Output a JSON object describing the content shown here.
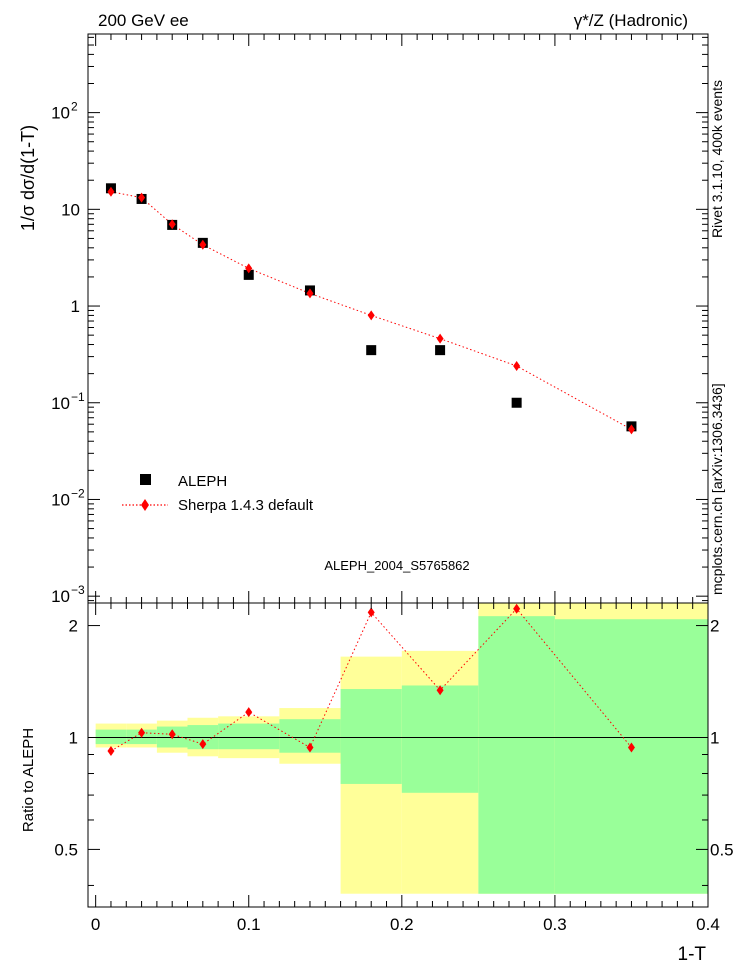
{
  "header": {
    "left": "200 GeV ee",
    "right": "γ*/Z (Hadronic)"
  },
  "side_labels": {
    "version": "Rivet 3.1.10,  400k events",
    "source": "mcplots.cern.ch [arXiv:1306.3436]"
  },
  "watermark": "ALEPH_2004_S5765862",
  "chart_data": [
    {
      "type": "scatter",
      "panel": "main",
      "ylabel": "1/σ  dσ/d(1-T)",
      "yscale": "log",
      "ylim": [
        0.00085,
        650
      ],
      "xlim": [
        -0.005,
        0.4
      ],
      "y_ticks": [
        {
          "value": 100,
          "label": "10",
          "exp": "2"
        },
        {
          "value": 10,
          "label": "10",
          "exp": ""
        },
        {
          "value": 1,
          "label": "1",
          "exp": ""
        },
        {
          "value": 0.1,
          "label": "10",
          "exp": "−1"
        },
        {
          "value": 0.01,
          "label": "10",
          "exp": "−2"
        },
        {
          "value": 0.001,
          "label": "10",
          "exp": "−3"
        }
      ],
      "legend": {
        "position": "bottom-left",
        "entries": [
          "ALEPH",
          "Sherpa 1.4.3 default"
        ]
      },
      "series": [
        {
          "name": "ALEPH",
          "color": "#000000",
          "marker": "square",
          "x": [
            0.01,
            0.03,
            0.05,
            0.07,
            0.1,
            0.14,
            0.18,
            0.225,
            0.275,
            0.35
          ],
          "y": [
            16.5,
            12.8,
            6.9,
            4.5,
            2.1,
            1.45,
            0.35,
            0.35,
            0.1,
            0.057
          ]
        },
        {
          "name": "Sherpa 1.4.3 default",
          "color": "#ff0000",
          "marker": "diamond",
          "line": "dotted",
          "x": [
            0.01,
            0.03,
            0.05,
            0.07,
            0.1,
            0.14,
            0.18,
            0.225,
            0.275,
            0.35
          ],
          "y": [
            15.2,
            13.2,
            7.0,
            4.3,
            2.45,
            1.35,
            0.8,
            0.46,
            0.24,
            0.053
          ]
        }
      ]
    },
    {
      "type": "area",
      "panel": "ratio",
      "ylabel": "Ratio to ALEPH",
      "xlabel": "1-T",
      "ylim": [
        0.35,
        2.3
      ],
      "xlim": [
        -0.005,
        0.4
      ],
      "x_ticks": [
        0,
        0.1,
        0.2,
        0.3,
        0.4
      ],
      "x_tick_labels": [
        "0",
        "0.1",
        "0.2",
        "0.3",
        "0.4"
      ],
      "y_ticks": [
        0.5,
        1,
        2
      ],
      "y_tick_labels": [
        "0.5",
        "1",
        "2"
      ],
      "reference_line": 1,
      "bins": [
        {
          "lo": 0.0,
          "hi": 0.02,
          "stat_lo": 0.96,
          "stat_hi": 1.05,
          "tot_lo": 0.94,
          "tot_hi": 1.09
        },
        {
          "lo": 0.02,
          "hi": 0.04,
          "stat_lo": 0.96,
          "stat_hi": 1.05,
          "tot_lo": 0.94,
          "tot_hi": 1.09
        },
        {
          "lo": 0.04,
          "hi": 0.06,
          "stat_lo": 0.94,
          "stat_hi": 1.07,
          "tot_lo": 0.91,
          "tot_hi": 1.11
        },
        {
          "lo": 0.06,
          "hi": 0.08,
          "stat_lo": 0.93,
          "stat_hi": 1.08,
          "tot_lo": 0.89,
          "tot_hi": 1.13
        },
        {
          "lo": 0.08,
          "hi": 0.12,
          "stat_lo": 0.93,
          "stat_hi": 1.09,
          "tot_lo": 0.88,
          "tot_hi": 1.14
        },
        {
          "lo": 0.12,
          "hi": 0.16,
          "stat_lo": 0.91,
          "stat_hi": 1.12,
          "tot_lo": 0.85,
          "tot_hi": 1.2
        },
        {
          "lo": 0.16,
          "hi": 0.2,
          "stat_lo": 0.75,
          "stat_hi": 1.35,
          "tot_lo": 0.38,
          "tot_hi": 1.65
        },
        {
          "lo": 0.2,
          "hi": 0.25,
          "stat_lo": 0.71,
          "stat_hi": 1.38,
          "tot_lo": 0.38,
          "tot_hi": 1.71
        },
        {
          "lo": 0.25,
          "hi": 0.3,
          "stat_lo": 0.38,
          "stat_hi": 2.12,
          "tot_lo": 0.38,
          "tot_hi": 2.3
        },
        {
          "lo": 0.3,
          "hi": 0.4,
          "stat_lo": 0.38,
          "stat_hi": 2.08,
          "tot_lo": 0.38,
          "tot_hi": 2.3
        }
      ],
      "series": [
        {
          "name": "Sherpa 1.4.3 default",
          "color": "#ff0000",
          "x": [
            0.01,
            0.03,
            0.05,
            0.07,
            0.1,
            0.14,
            0.18,
            0.225,
            0.275,
            0.35
          ],
          "y": [
            0.92,
            1.03,
            1.02,
            0.96,
            1.17,
            0.94,
            2.17,
            1.34,
            2.22,
            0.94
          ]
        }
      ],
      "colors": {
        "stat_band": "#99ff99",
        "total_band": "#ffff99"
      }
    }
  ]
}
